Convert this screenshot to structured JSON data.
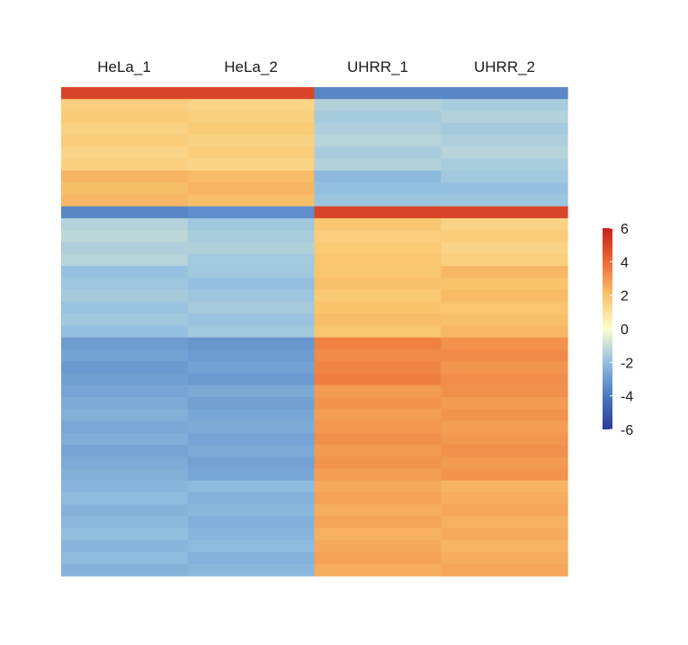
{
  "chart_data": {
    "type": "heatmap",
    "title": "",
    "columns": [
      "HeLa_1",
      "HeLa_2",
      "UHRR_1",
      "UHRR_2"
    ],
    "row_blocks": [
      {
        "rows": 1,
        "values": [
          5.0,
          5.0,
          -3.6,
          -3.6
        ]
      },
      {
        "rows": 6,
        "values": [
          1.6,
          1.6,
          -1.5,
          -1.5
        ]
      },
      {
        "rows": 3,
        "values": [
          2.2,
          2.2,
          -2.0,
          -1.8
        ]
      },
      {
        "rows": 1,
        "values": [
          -3.6,
          -3.4,
          5.0,
          5.0
        ]
      },
      {
        "rows": 4,
        "values": [
          -1.4,
          -1.6,
          1.8,
          1.6
        ]
      },
      {
        "rows": 6,
        "values": [
          -1.8,
          -1.8,
          2.0,
          2.1
        ]
      },
      {
        "rows": 4,
        "values": [
          -3.0,
          -3.0,
          3.4,
          3.2
        ]
      },
      {
        "rows": 8,
        "values": [
          -2.6,
          -2.7,
          3.0,
          3.0
        ]
      },
      {
        "rows": 8,
        "values": [
          -2.2,
          -2.3,
          2.6,
          2.5
        ]
      }
    ],
    "colorbar": {
      "ticks": [
        6,
        4,
        2,
        0,
        -2,
        -4,
        -6
      ],
      "range": [
        -6,
        6
      ],
      "colors": [
        "#2b3a98",
        "#4a79c0",
        "#93bfe0",
        "#fefecb",
        "#f9c46c",
        "#ec6a35",
        "#c4221d"
      ]
    },
    "legend_position": "right"
  }
}
